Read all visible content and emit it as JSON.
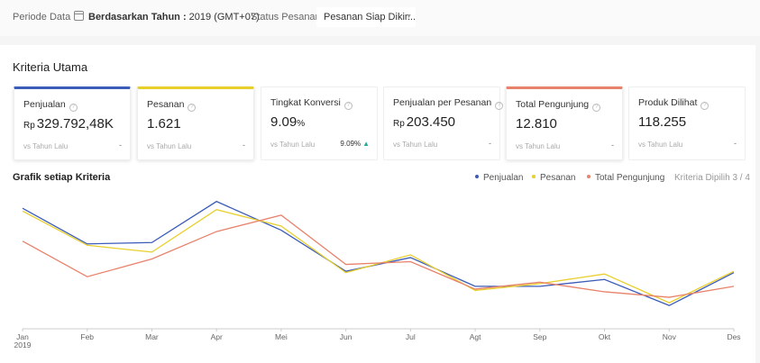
{
  "filters": {
    "period_label": "Periode Data",
    "period_mode": "Berdasarkan Tahun :",
    "period_value": "2019 (GMT+07)",
    "status_label": "Status Pesanan",
    "status_value": "Pesanan Siap Dikir..."
  },
  "section_title": "Kriteria Utama",
  "cards": [
    {
      "label": "Penjualan",
      "prefix": "Rp",
      "value": "329.792,48K",
      "vs": "vs Tahun Lalu",
      "change": "-",
      "accent": "#3b5cb8",
      "selected": true
    },
    {
      "label": "Pesanan",
      "prefix": "",
      "value": "1.621",
      "vs": "vs Tahun Lalu",
      "change": "-",
      "accent": "#e8cf2b",
      "selected": true
    },
    {
      "label": "Tingkat Konversi",
      "prefix": "",
      "value": "9.09",
      "suffix": "%",
      "vs": "vs Tahun Lalu",
      "change": "9.09%",
      "selected": false
    },
    {
      "label": "Penjualan per Pesanan",
      "prefix": "Rp",
      "value": "203.450",
      "vs": "vs Tahun Lalu",
      "change": "-",
      "selected": false
    },
    {
      "label": "Total Pengunjung",
      "prefix": "",
      "value": "12.810",
      "vs": "vs Tahun Lalu",
      "change": "-",
      "accent": "#e8826b",
      "selected": true
    },
    {
      "label": "Produk Dilihat",
      "prefix": "",
      "value": "118.255",
      "vs": "vs Tahun Lalu",
      "change": "-",
      "selected": false
    }
  ],
  "chart_title": "Grafik setiap Kriteria",
  "chart_meta": "Kriteria Dipilih 3 / 4",
  "chart_data": {
    "type": "line",
    "categories": [
      "Jan",
      "Feb",
      "Mar",
      "Apr",
      "Mei",
      "Jun",
      "Jul",
      "Agt",
      "Sep",
      "Okt",
      "Nov",
      "Des"
    ],
    "first_tick_sublabel": "2019",
    "series": [
      {
        "name": "Penjualan",
        "color": "#3b5cb8",
        "values": [
          0.88,
          0.62,
          0.63,
          0.93,
          0.72,
          0.42,
          0.52,
          0.31,
          0.31,
          0.36,
          0.17,
          0.41
        ]
      },
      {
        "name": "Pesanan",
        "color": "#e8cf2b",
        "values": [
          0.86,
          0.61,
          0.56,
          0.87,
          0.75,
          0.41,
          0.54,
          0.28,
          0.33,
          0.4,
          0.19,
          0.42
        ]
      },
      {
        "name": "Total Pengunjung",
        "color": "#e8826b",
        "values": [
          0.64,
          0.38,
          0.51,
          0.71,
          0.83,
          0.47,
          0.49,
          0.29,
          0.34,
          0.27,
          0.23,
          0.31
        ]
      }
    ],
    "ylim": [
      0,
      1
    ],
    "grid": false,
    "legend": "top-right"
  }
}
